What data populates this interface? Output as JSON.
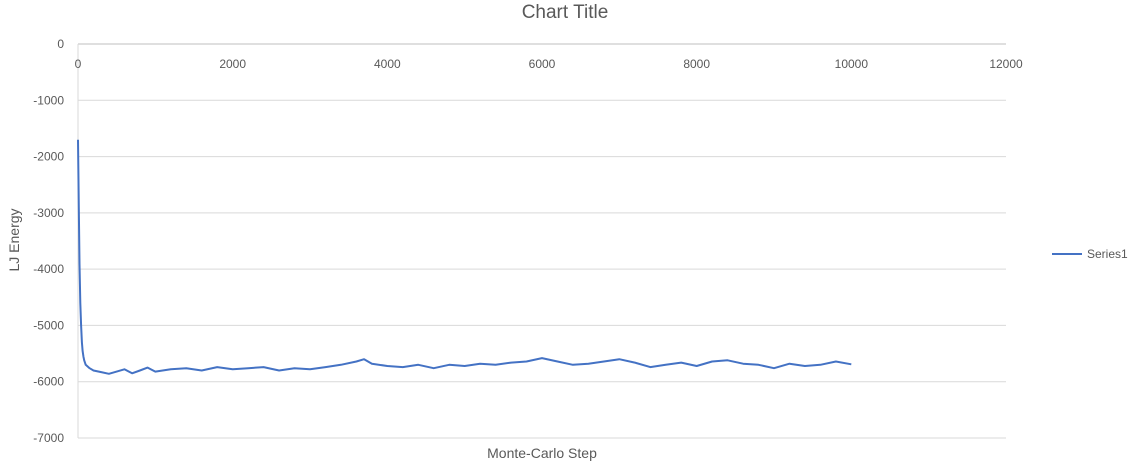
{
  "chart_data": {
    "type": "line",
    "title": "Chart Title",
    "xlabel": "Monte-Carlo Step",
    "ylabel": "LJ Energy",
    "xlim": [
      0,
      12000
    ],
    "ylim": [
      -7000,
      0
    ],
    "x_ticks": [
      0,
      2000,
      4000,
      6000,
      8000,
      10000,
      12000
    ],
    "y_ticks": [
      0,
      -1000,
      -2000,
      -3000,
      -4000,
      -5000,
      -6000,
      -7000
    ],
    "x_tick_labels": [
      "0",
      "2000",
      "4000",
      "6000",
      "8000",
      "10000",
      "12000"
    ],
    "y_tick_labels": [
      "0",
      "-1000",
      "-2000",
      "-3000",
      "-4000",
      "-5000",
      "-6000",
      "-7000"
    ],
    "grid": true,
    "x_axis_position": "top (at y=0)",
    "legend": "right",
    "series": [
      {
        "name": "Series1",
        "color": "#4472c4",
        "x": [
          0,
          10,
          20,
          30,
          40,
          50,
          60,
          70,
          80,
          100,
          150,
          200,
          300,
          400,
          500,
          600,
          700,
          800,
          900,
          1000,
          1200,
          1400,
          1600,
          1800,
          2000,
          2200,
          2400,
          2600,
          2800,
          3000,
          3200,
          3400,
          3600,
          3700,
          3800,
          4000,
          4200,
          4400,
          4600,
          4800,
          5000,
          5200,
          5400,
          5600,
          5800,
          6000,
          6200,
          6400,
          6600,
          6800,
          7000,
          7200,
          7400,
          7600,
          7800,
          8000,
          8200,
          8400,
          8600,
          8800,
          9000,
          9200,
          9400,
          9600,
          9800,
          10000
        ],
        "y": [
          -1700,
          -2900,
          -3900,
          -4600,
          -5000,
          -5300,
          -5450,
          -5550,
          -5620,
          -5700,
          -5760,
          -5800,
          -5830,
          -5860,
          -5820,
          -5780,
          -5850,
          -5800,
          -5750,
          -5820,
          -5780,
          -5760,
          -5800,
          -5740,
          -5780,
          -5760,
          -5740,
          -5800,
          -5760,
          -5780,
          -5740,
          -5700,
          -5640,
          -5600,
          -5680,
          -5720,
          -5740,
          -5700,
          -5760,
          -5700,
          -5720,
          -5680,
          -5700,
          -5660,
          -5640,
          -5580,
          -5640,
          -5700,
          -5680,
          -5640,
          -5600,
          -5660,
          -5740,
          -5700,
          -5660,
          -5720,
          -5640,
          -5620,
          -5680,
          -5700,
          -5760,
          -5680,
          -5720,
          -5700,
          -5640,
          -5690
        ]
      }
    ]
  }
}
